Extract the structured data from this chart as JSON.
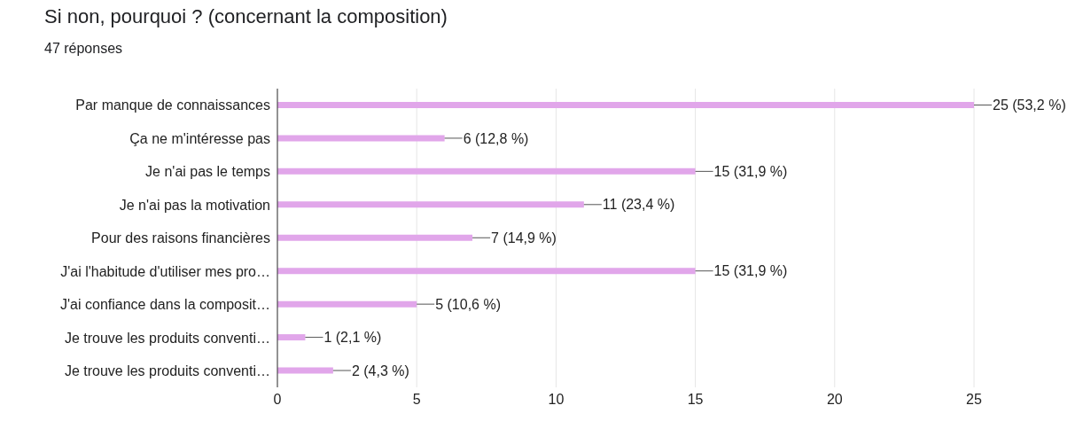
{
  "chart_data": {
    "type": "bar",
    "orientation": "horizontal",
    "title": "Si non, pourquoi ? (concernant la composition)",
    "subtitle": "47 réponses",
    "categories": [
      "Par manque de connaissances",
      "Ça ne m'intéresse pas",
      "Je n'ai pas le temps",
      "Je n'ai pas la motivation",
      "Pour des raisons financières",
      "J'ai l'habitude d'utiliser mes pro…",
      "J'ai confiance dans la composit…",
      "Je trouve les produits conventi…",
      "Je trouve les produits conventi…"
    ],
    "values": [
      25,
      6,
      15,
      11,
      7,
      15,
      5,
      1,
      2
    ],
    "value_labels": [
      "25 (53,2 %)",
      "6 (12,8 %)",
      "15 (31,9 %)",
      "11 (23,4 %)",
      "7 (14,9 %)",
      "15 (31,9 %)",
      "5 (10,6 %)",
      "1 (2,1 %)",
      "2 (4,3 %)"
    ],
    "color": "#e1a6ea",
    "xlim": [
      0,
      25
    ],
    "xticks": [
      0,
      5,
      10,
      15,
      20,
      25
    ],
    "grid": "x"
  }
}
